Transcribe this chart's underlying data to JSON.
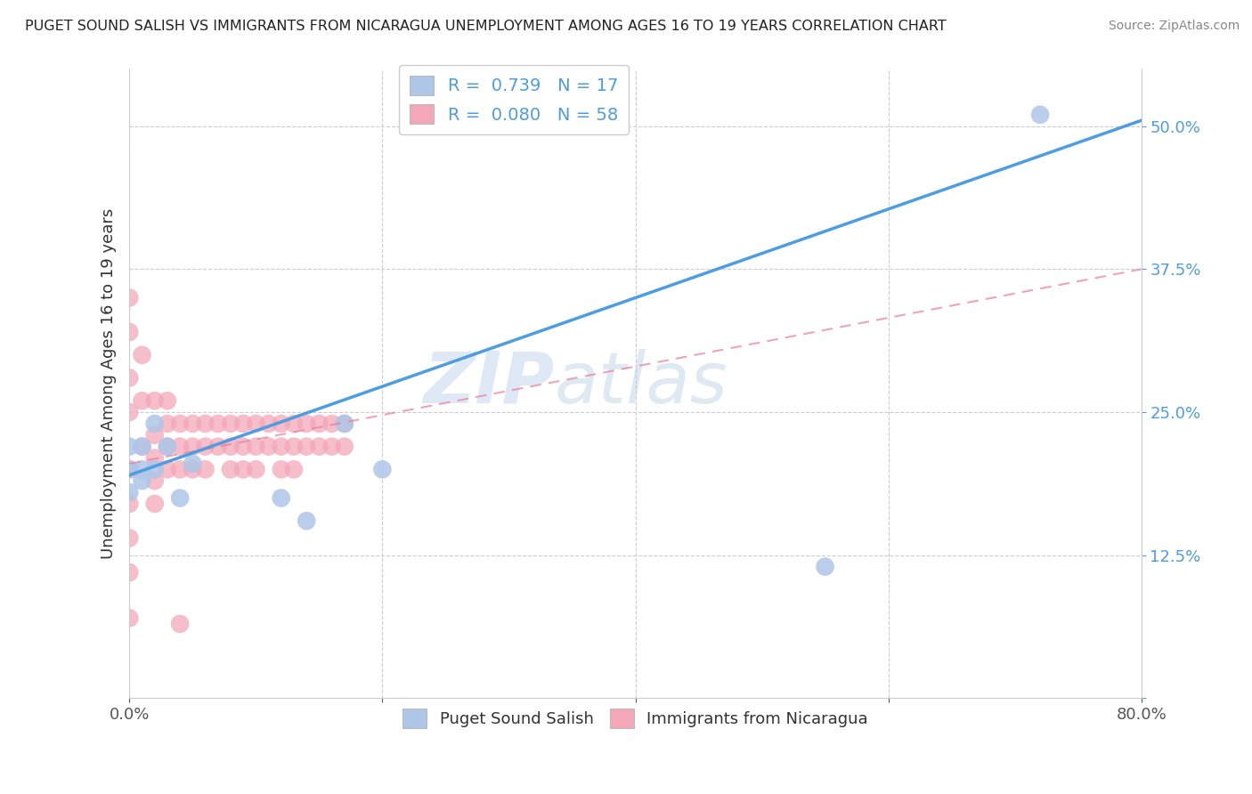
{
  "title": "PUGET SOUND SALISH VS IMMIGRANTS FROM NICARAGUA UNEMPLOYMENT AMONG AGES 16 TO 19 YEARS CORRELATION CHART",
  "source": "Source: ZipAtlas.com",
  "ylabel": "Unemployment Among Ages 16 to 19 years",
  "xlim": [
    0.0,
    0.8
  ],
  "ylim": [
    0.0,
    0.55
  ],
  "xticks": [
    0.0,
    0.2,
    0.4,
    0.6,
    0.8
  ],
  "xticklabels": [
    "0.0%",
    "",
    "",
    "",
    "80.0%"
  ],
  "yticks": [
    0.0,
    0.125,
    0.25,
    0.375,
    0.5
  ],
  "yticklabels": [
    "",
    "12.5%",
    "25.0%",
    "37.5%",
    "50.0%"
  ],
  "legend_labels": [
    "Puget Sound Salish",
    "Immigrants from Nicaragua"
  ],
  "R_salish": 0.739,
  "N_salish": 17,
  "R_nicaragua": 0.08,
  "N_nicaragua": 58,
  "salish_color": "#aec6e8",
  "nicaragua_color": "#f4a7b9",
  "salish_line_color": "#4d9de0",
  "nicaragua_line_color": "#e87d9e",
  "watermark_zip": "ZIP",
  "watermark_atlas": "atlas",
  "background_color": "#ffffff",
  "salish_points_x": [
    0.0,
    0.0,
    0.0,
    0.01,
    0.01,
    0.01,
    0.02,
    0.02,
    0.03,
    0.04,
    0.05,
    0.12,
    0.14,
    0.17,
    0.2,
    0.55,
    0.72
  ],
  "salish_points_y": [
    0.2,
    0.22,
    0.18,
    0.2,
    0.22,
    0.19,
    0.2,
    0.24,
    0.22,
    0.175,
    0.205,
    0.175,
    0.155,
    0.24,
    0.2,
    0.115,
    0.51
  ],
  "nicaragua_points_x": [
    0.0,
    0.0,
    0.0,
    0.0,
    0.0,
    0.0,
    0.0,
    0.0,
    0.0,
    0.01,
    0.01,
    0.01,
    0.02,
    0.02,
    0.02,
    0.02,
    0.02,
    0.03,
    0.03,
    0.03,
    0.03,
    0.04,
    0.04,
    0.04,
    0.04,
    0.05,
    0.05,
    0.05,
    0.06,
    0.06,
    0.06,
    0.07,
    0.07,
    0.08,
    0.08,
    0.08,
    0.09,
    0.09,
    0.09,
    0.1,
    0.1,
    0.1,
    0.11,
    0.11,
    0.12,
    0.12,
    0.12,
    0.13,
    0.13,
    0.13,
    0.14,
    0.14,
    0.15,
    0.15,
    0.16,
    0.16,
    0.17,
    0.17
  ],
  "nicaragua_points_y": [
    0.32,
    0.35,
    0.28,
    0.25,
    0.2,
    0.17,
    0.14,
    0.11,
    0.07,
    0.3,
    0.26,
    0.22,
    0.26,
    0.23,
    0.21,
    0.19,
    0.17,
    0.26,
    0.24,
    0.22,
    0.2,
    0.24,
    0.22,
    0.2,
    0.065,
    0.24,
    0.22,
    0.2,
    0.24,
    0.22,
    0.2,
    0.24,
    0.22,
    0.24,
    0.22,
    0.2,
    0.24,
    0.22,
    0.2,
    0.24,
    0.22,
    0.2,
    0.24,
    0.22,
    0.24,
    0.22,
    0.2,
    0.24,
    0.22,
    0.2,
    0.24,
    0.22,
    0.24,
    0.22,
    0.24,
    0.22,
    0.24,
    0.22
  ],
  "salish_line_x0": 0.0,
  "salish_line_y0": 0.195,
  "salish_line_x1": 0.8,
  "salish_line_y1": 0.505,
  "nicaragua_line_x0": 0.0,
  "nicaragua_line_y0": 0.205,
  "nicaragua_line_x1": 0.8,
  "nicaragua_line_y1": 0.375
}
